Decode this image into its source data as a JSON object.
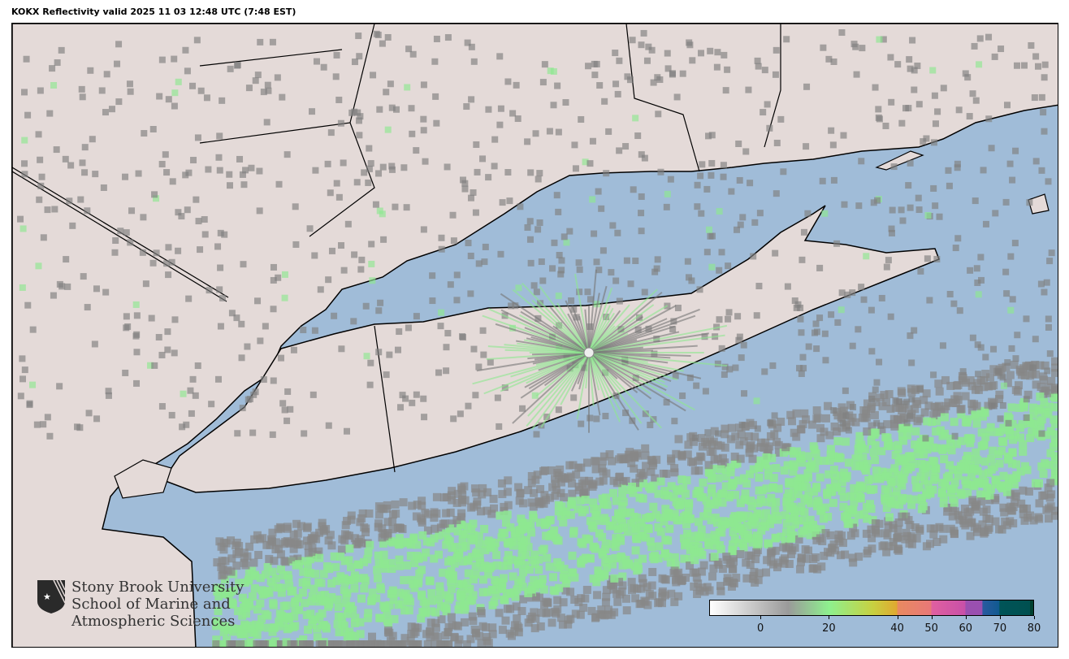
{
  "title": "KOKX Reflectivity valid 2025 11 03 12:48 UTC (7:48 EST)",
  "logo": {
    "lines": [
      "Stony Brook University",
      "School of Marine and",
      "Atmospheric Sciences"
    ]
  },
  "colorbar": {
    "min": -15,
    "max": 80,
    "ticks": [
      {
        "value": 0,
        "label": "0"
      },
      {
        "value": 20,
        "label": "20"
      },
      {
        "value": 40,
        "label": "40"
      },
      {
        "value": 50,
        "label": "50"
      },
      {
        "value": 60,
        "label": "60"
      },
      {
        "value": 70,
        "label": "70"
      },
      {
        "value": 80,
        "label": "80"
      }
    ],
    "stops": [
      {
        "value": -15,
        "color": "#ffffff"
      },
      {
        "value": 8,
        "color": "#9a9a9a"
      },
      {
        "value": 20,
        "color": "#8ef08e"
      },
      {
        "value": 33,
        "color": "#c8d040"
      },
      {
        "value": 40,
        "color": "#e0a830"
      },
      {
        "value": 40.1,
        "color": "#e88a60"
      },
      {
        "value": 50,
        "color": "#e87878"
      },
      {
        "value": 50.1,
        "color": "#e060a0"
      },
      {
        "value": 60,
        "color": "#c850a8"
      },
      {
        "value": 60.1,
        "color": "#9a50b0"
      },
      {
        "value": 65,
        "color": "#9a50b0"
      },
      {
        "value": 65.1,
        "color": "#2a5aa0"
      },
      {
        "value": 70,
        "color": "#105a90"
      },
      {
        "value": 70.1,
        "color": "#005458"
      },
      {
        "value": 79,
        "color": "#005050"
      },
      {
        "value": 79.1,
        "color": "#004030"
      }
    ]
  },
  "map": {
    "water_color": "#a0bcd8",
    "land_color": "#e4dad8",
    "radar_site": "KOKX"
  }
}
